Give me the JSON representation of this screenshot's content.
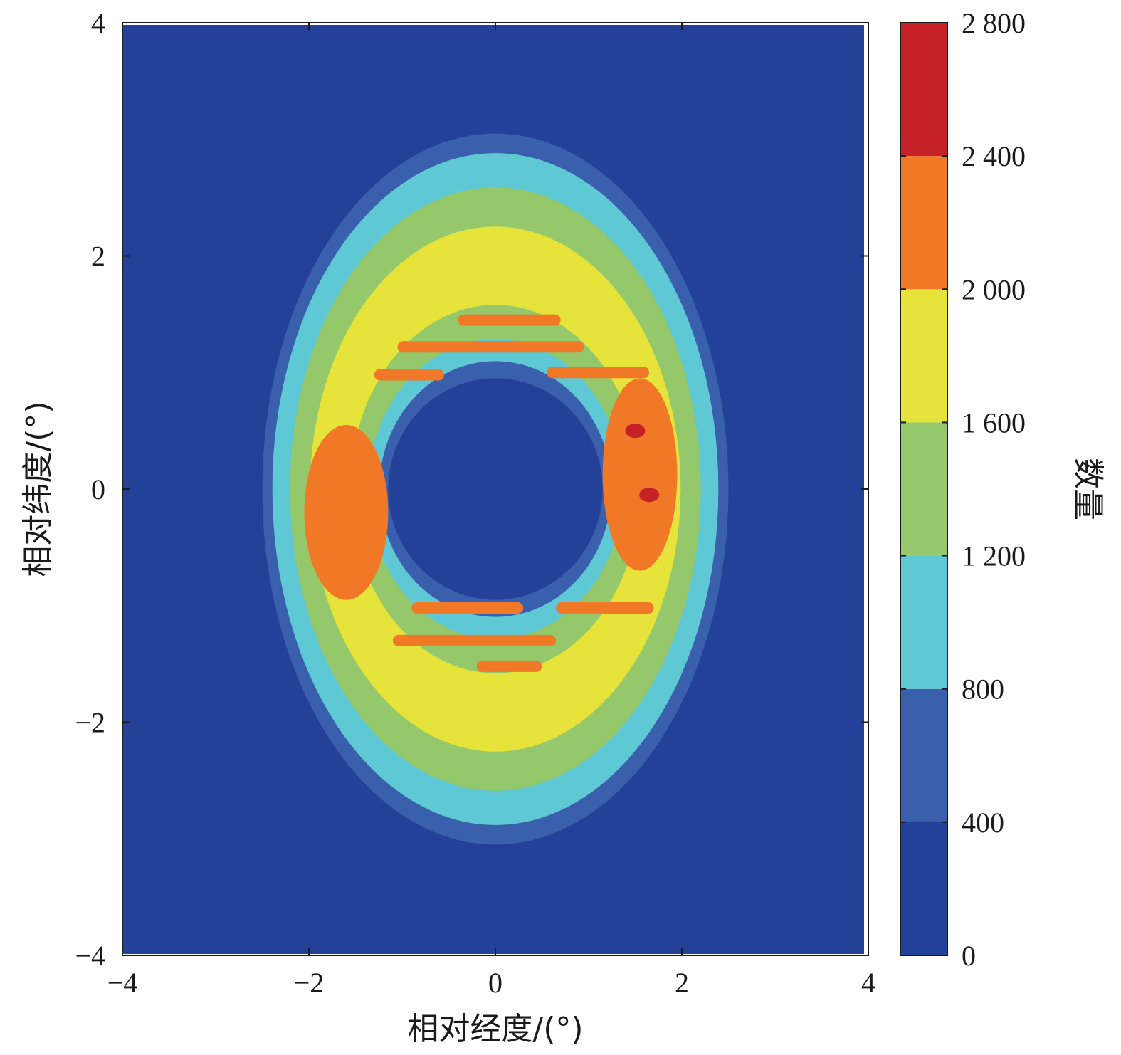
{
  "chart_data": {
    "type": "contour",
    "xlabel": "相对经度/(°)",
    "ylabel": "相对纬度/(°)",
    "colorbar_label": "数量",
    "xlim": [
      -4,
      4
    ],
    "ylim": [
      -4,
      4
    ],
    "xticks": [
      -4,
      -2,
      0,
      2,
      4
    ],
    "yticks": [
      -4,
      -2,
      0,
      2,
      4
    ],
    "xtick_labels": [
      "−4",
      "−2",
      "0",
      "2",
      "4"
    ],
    "ytick_labels": [
      "−4",
      "−2",
      "0",
      "2",
      "4"
    ],
    "colorbar_ticks": [
      0,
      400,
      800,
      1200,
      1600,
      2000,
      2400,
      2800
    ],
    "colorbar_tick_labels": [
      "0",
      "400",
      "800",
      "1 200",
      "1 600",
      "2 000",
      "2 400",
      "2 800"
    ],
    "levels": [
      {
        "min": 0,
        "max": 400,
        "color": "#24419a"
      },
      {
        "min": 400,
        "max": 800,
        "color": "#3a60ad"
      },
      {
        "min": 800,
        "max": 1200,
        "color": "#5ec8d4"
      },
      {
        "min": 1200,
        "max": 1600,
        "color": "#94c86a"
      },
      {
        "min": 1600,
        "max": 2000,
        "color": "#e6e43a"
      },
      {
        "min": 2000,
        "max": 2400,
        "color": "#f07826"
      },
      {
        "min": 2400,
        "max": 2800,
        "color": "#c62127"
      }
    ],
    "ring": {
      "center": [
        0,
        0
      ],
      "outer_semi_axes": [
        2.5,
        3.05
      ],
      "inner_semi_axes": [
        1.15,
        0.95
      ],
      "peak_value": 2750,
      "peak_locations": [
        [
          1.5,
          0.5
        ],
        [
          1.65,
          -0.05
        ]
      ]
    },
    "orange_bands": [
      {
        "x": [
          -0.4,
          0.7
        ],
        "y": 1.45
      },
      {
        "x": [
          -1.05,
          0.95
        ],
        "y": 1.22
      },
      {
        "x": [
          -1.3,
          -0.55
        ],
        "y": 0.98
      },
      {
        "x": [
          0.55,
          1.65
        ],
        "y": 1.0
      },
      {
        "x": [
          -0.9,
          0.3
        ],
        "y": -1.02
      },
      {
        "x": [
          0.65,
          1.7
        ],
        "y": -1.02
      },
      {
        "x": [
          -1.1,
          0.65
        ],
        "y": -1.3
      },
      {
        "x": [
          -0.2,
          0.5
        ],
        "y": -1.52
      }
    ],
    "orange_lobes": [
      {
        "x": [
          -2.05,
          -1.15
        ],
        "y": [
          -0.95,
          0.55
        ]
      },
      {
        "x": [
          1.15,
          1.95
        ],
        "y": [
          -0.7,
          0.95
        ]
      }
    ]
  }
}
